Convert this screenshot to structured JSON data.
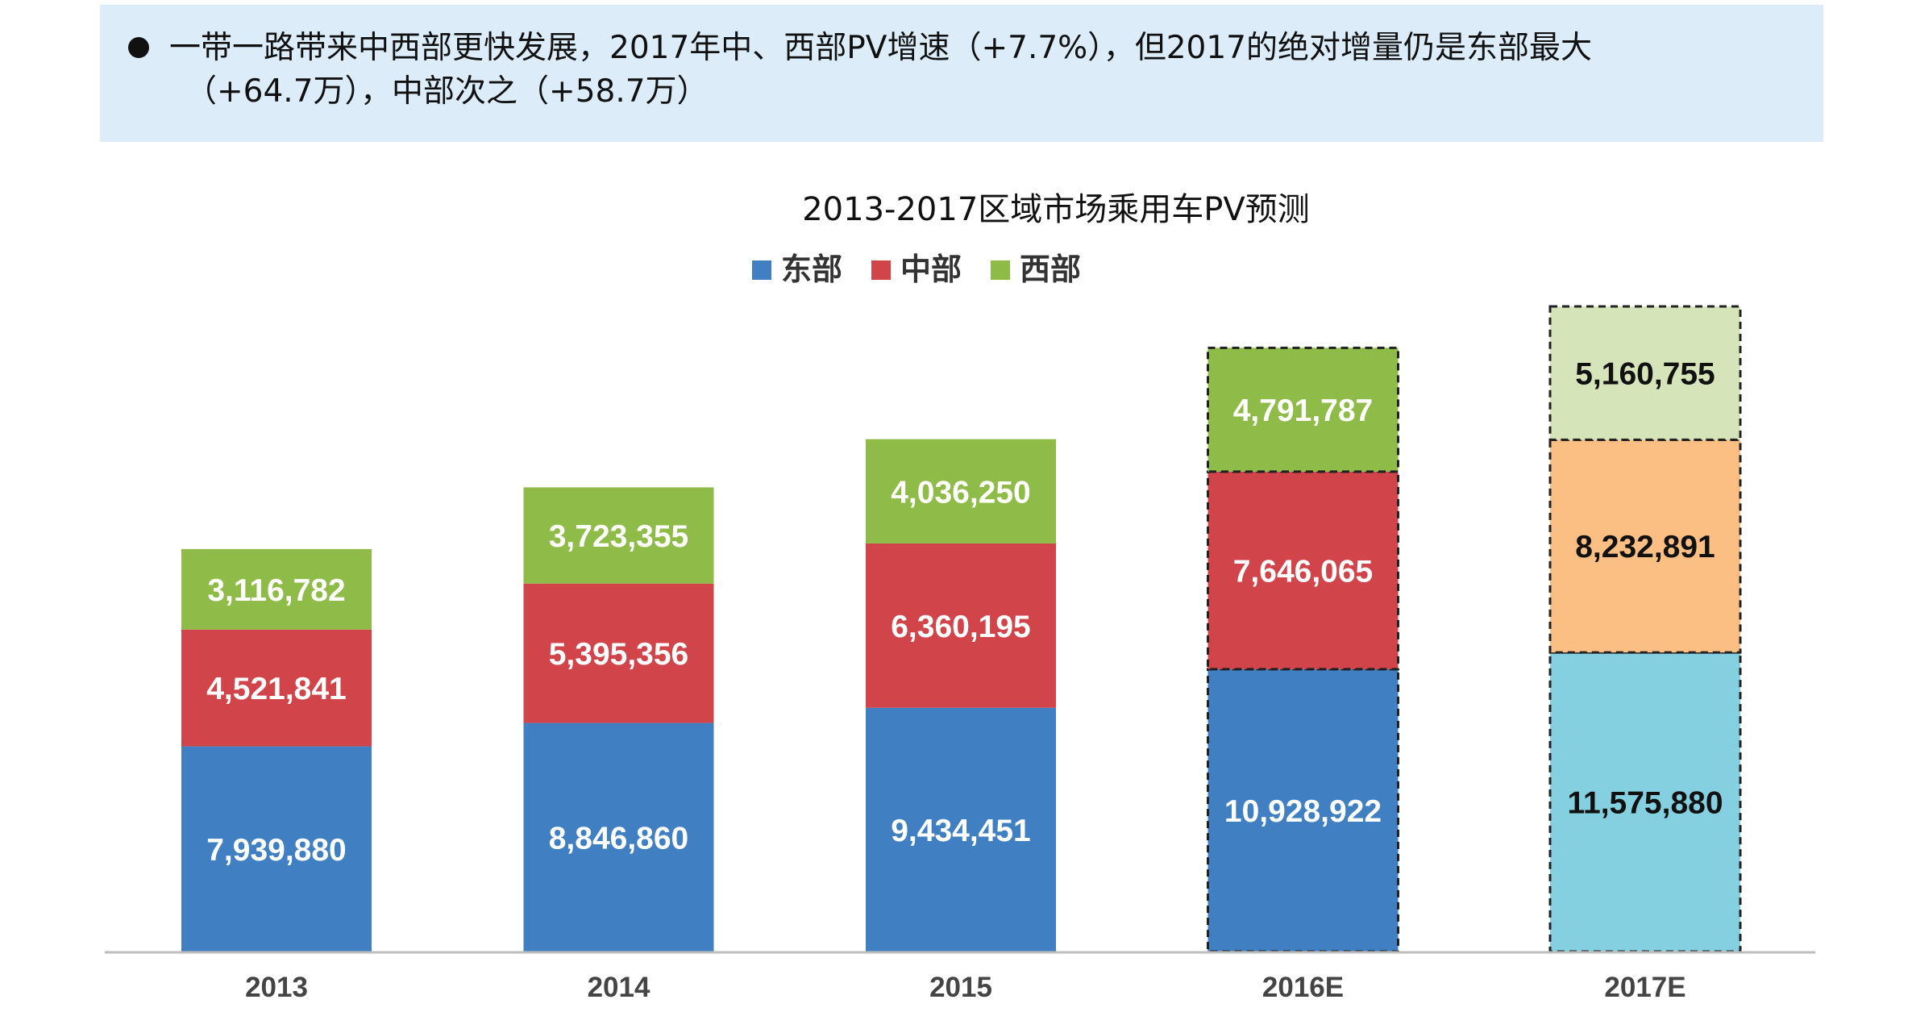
{
  "callout": {
    "line1": "一带一路带来中西部更快发展，2017年中、西部PV增速（+7.7%），但2017的绝对增量仍是东部最大",
    "line2": "（+64.7万），中部次之（+58.7万）"
  },
  "chart_data": {
    "type": "bar",
    "stacked": true,
    "title": "2013-2017区域市场乘用车PV预测",
    "legend_position": "top-center",
    "categories": [
      "2013",
      "2014",
      "2015",
      "2016E",
      "2017E"
    ],
    "series": [
      {
        "name": "东部",
        "color": "#3f7fc2",
        "values": [
          7939880,
          8846860,
          9434451,
          10928922,
          11575880
        ],
        "labels": [
          "7,939,880",
          "8,846,860",
          "9,434,451",
          "10,928,922",
          "11,575,880"
        ]
      },
      {
        "name": "中部",
        "color": "#d0444a",
        "values": [
          4521841,
          5395356,
          6360195,
          7646065,
          8232891
        ],
        "labels": [
          "4,521,841",
          "5,395,356",
          "6,360,195",
          "7,646,065",
          "8,232,891"
        ]
      },
      {
        "name": "西部",
        "color": "#8fbc48",
        "values": [
          3116782,
          3723355,
          4036250,
          4791787,
          5160755
        ],
        "labels": [
          "3,116,782",
          "3,723,355",
          "4,036,250",
          "4,791,787",
          "5,160,755"
        ]
      }
    ],
    "forecast_categories": [
      "2016E",
      "2017E"
    ],
    "forecast_colors_2017E": [
      "#84cfe0",
      "#fbbf84",
      "#d6e4ba"
    ],
    "label_color": "#ffffff",
    "label_color_light_bars": "#111111",
    "grid": false
  }
}
